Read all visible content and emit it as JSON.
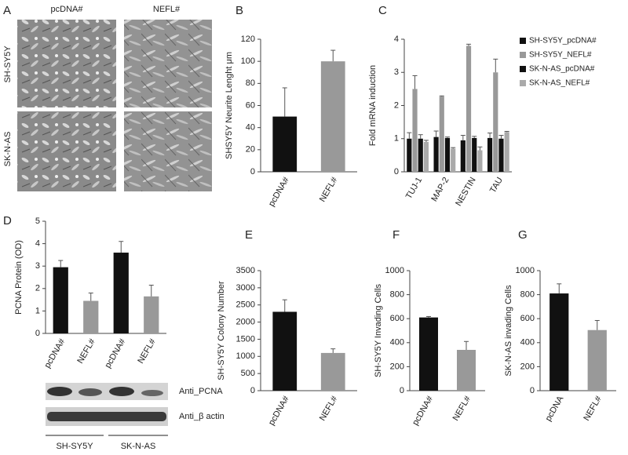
{
  "panel_a": {
    "label": "A",
    "columns": [
      "pcDNA#",
      "NEFL#"
    ],
    "rows": [
      "SH-SY5Y",
      "SK-N-AS"
    ]
  },
  "blot": {
    "bands": [
      "Anti_PCNA",
      "Anti_β actin"
    ],
    "groups": [
      "SH-SY5Y",
      "SK-N-AS"
    ]
  },
  "chart_data": [
    {
      "type": "bar",
      "panel": "B",
      "y_label": "SHSY5Y Neurite Lenght μm",
      "categories": [
        "pcDNA#",
        "NEFL#"
      ],
      "values": [
        50,
        100
      ],
      "errors": [
        26,
        10
      ],
      "colors": [
        "#111111",
        "#999999"
      ],
      "ylim": [
        0,
        120
      ],
      "yticks": [
        0,
        20,
        40,
        60,
        80,
        100,
        120
      ]
    },
    {
      "type": "grouped-bar",
      "panel": "C",
      "y_label": "Fold mRNA induction",
      "categories": [
        "TUJ-1",
        "MAP-2",
        "NESTIN",
        "TAU"
      ],
      "series": [
        {
          "name": "SH-SY5Y_pcDNA#",
          "color": "#111111",
          "values": [
            1.0,
            1.05,
            0.95,
            1.02
          ],
          "errors": [
            0.18,
            0.18,
            0.15,
            0.15
          ]
        },
        {
          "name": "SH-SY5Y_NEFL#",
          "color": "#999999",
          "values": [
            2.5,
            2.27,
            3.8,
            3.0
          ],
          "errors": [
            0.4,
            0.02,
            0.05,
            0.4
          ]
        },
        {
          "name": "SK-N-AS_pcDNA#",
          "color": "#111111",
          "values": [
            1.0,
            1.02,
            1.02,
            1.0
          ],
          "errors": [
            0.12,
            0.03,
            0.05,
            0.1
          ]
        },
        {
          "name": "SK-N-AS_NEFL#",
          "color": "#aaaaaa",
          "values": [
            0.9,
            0.7,
            0.65,
            1.2
          ],
          "errors": [
            0.05,
            0.03,
            0.1,
            0.02
          ]
        }
      ],
      "ylim": [
        0,
        4
      ],
      "yticks": [
        0,
        1,
        2,
        3,
        4
      ]
    },
    {
      "type": "bar",
      "panel": "D",
      "y_label": "PCNA Protein (OD)",
      "categories": [
        "pcDNA#",
        "NEFL#",
        "pcDNA#",
        "NEFL#"
      ],
      "values": [
        2.95,
        1.45,
        3.6,
        1.65
      ],
      "errors": [
        0.3,
        0.35,
        0.5,
        0.5
      ],
      "colors": [
        "#111111",
        "#999999",
        "#111111",
        "#999999"
      ],
      "ylim": [
        0,
        5
      ],
      "yticks": [
        0,
        1,
        2,
        3,
        4,
        5
      ]
    },
    {
      "type": "bar",
      "panel": "E",
      "y_label": "SH-SY5Y Colony Number",
      "categories": [
        "pcDNA#",
        "NEFL#"
      ],
      "values": [
        2300,
        1100
      ],
      "errors": [
        350,
        120
      ],
      "colors": [
        "#111111",
        "#999999"
      ],
      "ylim": [
        0,
        3500
      ],
      "yticks": [
        0,
        500,
        1000,
        1500,
        2000,
        2500,
        3000,
        3500
      ]
    },
    {
      "type": "bar",
      "panel": "F",
      "y_label": "SH-SY5Y Invading Cells",
      "categories": [
        "pcDNA#",
        "NEFL#"
      ],
      "values": [
        610,
        340
      ],
      "errors": [
        8,
        70
      ],
      "colors": [
        "#111111",
        "#999999"
      ],
      "ylim": [
        0,
        1000
      ],
      "yticks": [
        0,
        200,
        400,
        600,
        800,
        1000
      ]
    },
    {
      "type": "bar",
      "panel": "G",
      "y_label": "SK-N-AS invading Cells",
      "categories": [
        "pcDNA",
        "NEFL#"
      ],
      "values": [
        810,
        505
      ],
      "errors": [
        80,
        80
      ],
      "colors": [
        "#111111",
        "#999999"
      ],
      "ylim": [
        0,
        1000
      ],
      "yticks": [
        0,
        200,
        400,
        600,
        800,
        1000
      ]
    }
  ]
}
